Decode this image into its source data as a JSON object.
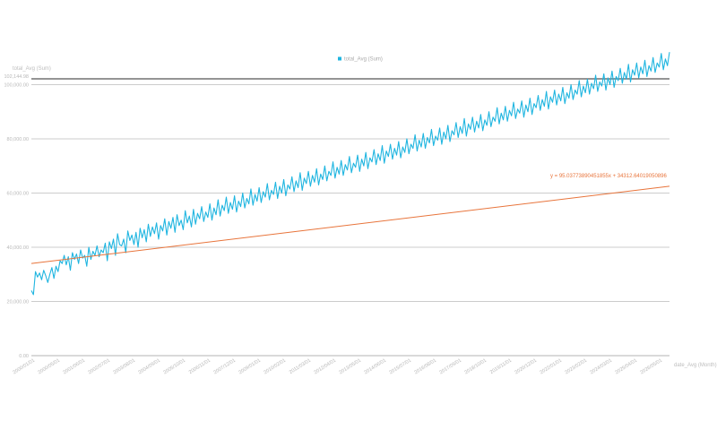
{
  "chart_data": {
    "type": "line",
    "legend": {
      "label": "total_Avg (Sum)",
      "color": "#1fb5e0",
      "position": "top"
    },
    "ylabel": "total_Avg (Sum)",
    "xlabel": "date_Avg (Month)",
    "ylim": [
      0,
      102144.98
    ],
    "yticks": [
      {
        "value": 0,
        "label": "0.00"
      },
      {
        "value": 20000,
        "label": "20,000.00"
      },
      {
        "value": 40000,
        "label": "40,000.00"
      },
      {
        "value": 60000,
        "label": "60,000.00"
      },
      {
        "value": 80000,
        "label": "80,000.00"
      },
      {
        "value": 100000,
        "label": "100,000.00"
      },
      {
        "value": 102144.98,
        "label": "102,144.98"
      }
    ],
    "xticks": [
      "2000/01/01",
      "2000/05/01",
      "2001/06/01",
      "2002/07/01",
      "2003/08/01",
      "2004/09/01",
      "2005/10/01",
      "2006/11/01",
      "2007/12/01",
      "2009/01/01",
      "2010/02/01",
      "2011/03/01",
      "2012/04/01",
      "2013/05/01",
      "2014/06/01",
      "2015/07/01",
      "2016/08/01",
      "2017/09/01",
      "2018/10/01",
      "2019/11/01",
      "2020/12/01",
      "2022/01/01",
      "2023/02/01",
      "2024/03/01",
      "2025/04/01",
      "2026/05/01"
    ],
    "series": [
      {
        "name": "total_Avg (Sum)",
        "color": "#1fb5e0",
        "values": [
          24000,
          22500,
          31000,
          29000,
          30500,
          28000,
          31500,
          29500,
          27000,
          30000,
          32500,
          28500,
          33000,
          31000,
          35000,
          34000,
          37000,
          33500,
          36500,
          31500,
          38000,
          35500,
          37500,
          34000,
          39000,
          36000,
          37000,
          33000,
          40000,
          35500,
          38500,
          37000,
          40500,
          36500,
          39000,
          38000,
          41500,
          35000,
          42000,
          39500,
          43000,
          37000,
          45000,
          41000,
          40500,
          43000,
          38000,
          46000,
          42500,
          44500,
          41000,
          45500,
          40000,
          47000,
          43500,
          46500,
          42000,
          48500,
          44000,
          47500,
          45000,
          49000,
          43000,
          48000,
          46000,
          50500,
          44500,
          49500,
          47000,
          51000,
          45500,
          52000,
          48000,
          50000,
          46500,
          53500,
          49000,
          51500,
          47500,
          54000,
          48500,
          52500,
          50500,
          55000,
          49500,
          53000,
          51000,
          56000,
          50000,
          54500,
          52000,
          57500,
          51500,
          55500,
          53500,
          58500,
          52500,
          56500,
          54000,
          59000,
          53000,
          57000,
          55000,
          60000,
          54500,
          58000,
          56000,
          61500,
          55500,
          59500,
          57000,
          62000,
          56500,
          60500,
          58500,
          63500,
          57500,
          61000,
          59500,
          64000,
          58000,
          62500,
          60000,
          65000,
          59000,
          63000,
          61500,
          66000,
          60500,
          64500,
          62000,
          67500,
          61000,
          65500,
          63500,
          68000,
          62500,
          66500,
          64000,
          69000,
          63000,
          67000,
          65000,
          70000,
          64500,
          68000,
          66500,
          71500,
          65500,
          69500,
          67000,
          72000,
          66500,
          70500,
          68500,
          73500,
          67500,
          71000,
          69500,
          74000,
          68000,
          72500,
          70000,
          75000,
          69000,
          73000,
          71500,
          76000,
          70500,
          74500,
          72000,
          77500,
          71000,
          75500,
          73500,
          78000,
          72500,
          76500,
          74000,
          79000,
          73000,
          77000,
          75000,
          80000,
          74500,
          78000,
          76500,
          81500,
          75500,
          79500,
          77000,
          82000,
          76500,
          80500,
          78500,
          83500,
          77500,
          81000,
          79500,
          84000,
          78000,
          82500,
          80000,
          85000,
          79000,
          83000,
          81500,
          86000,
          80500,
          84500,
          82000,
          87500,
          81000,
          85500,
          83500,
          88000,
          82500,
          86500,
          84000,
          89000,
          83000,
          87000,
          85000,
          90000,
          84500,
          88000,
          86500,
          91500,
          85500,
          89500,
          87000,
          92000,
          86500,
          90500,
          88500,
          93500,
          87500,
          91000,
          89500,
          94000,
          88000,
          92500,
          90000,
          95000,
          89000,
          93000,
          91500,
          96000,
          90500,
          94500,
          92000,
          97500,
          91000,
          95500,
          93500,
          98000,
          92500,
          96500,
          94000,
          99000,
          93000,
          97000,
          95000,
          100000,
          94500,
          98000,
          96500,
          101500,
          95500,
          99500,
          97000,
          102000,
          96500,
          100500,
          98500,
          103500,
          97500,
          101000,
          99500,
          104000,
          98000,
          102500,
          100000,
          105000,
          99000,
          103000,
          101500,
          106000,
          100500,
          104500,
          102000,
          107500,
          101000,
          105500,
          103500,
          108000,
          102500,
          106500,
          104000,
          109000,
          103000,
          107000,
          105000,
          110000,
          104500,
          108000,
          106500,
          111500,
          105500,
          109500,
          107000,
          112000
        ]
      },
      {
        "name": "trendline",
        "color": "#e8743b",
        "values": [
          34000,
          62500
        ]
      }
    ],
    "trend_equation": "y = 95.03773890451855x + 34312.64019050896",
    "grid": true
  }
}
